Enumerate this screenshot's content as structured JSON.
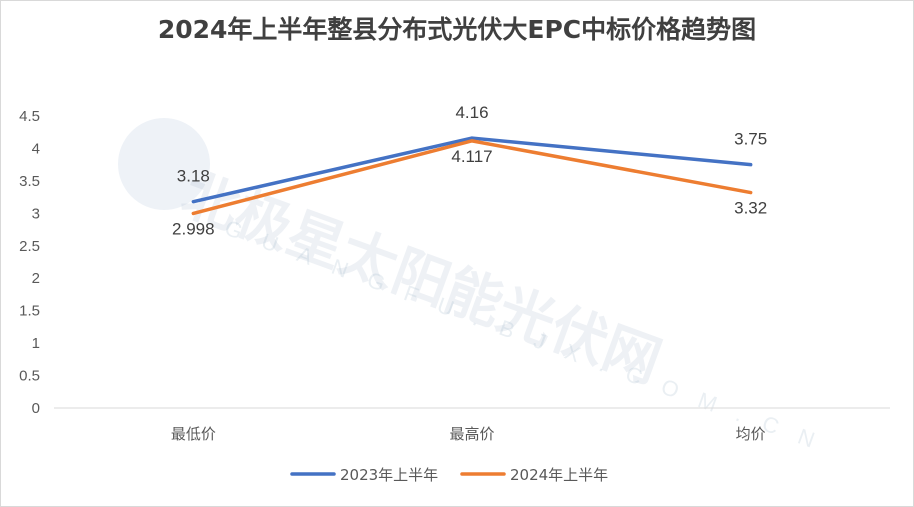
{
  "chart_data": {
    "type": "line",
    "title": "2024年上半年整县分布式光伏大EPC中标价格趋势图",
    "categories": [
      "最低价",
      "最高价",
      "均价"
    ],
    "series": [
      {
        "name": "2023年上半年",
        "values": [
          3.18,
          4.16,
          3.75
        ],
        "labels": [
          "3.18",
          "4.16",
          "3.75"
        ],
        "color": "#4472c4"
      },
      {
        "name": "2024年上半年",
        "values": [
          2.998,
          4.117,
          3.32
        ],
        "labels": [
          "2.998",
          "4.117",
          "3.32"
        ],
        "color": "#ed7d31"
      }
    ],
    "yticks": [
      "0",
      "0.5",
      "1",
      "1.5",
      "2",
      "2.5",
      "3",
      "3.5",
      "4",
      "4.5"
    ],
    "ylim": [
      0,
      4.5
    ],
    "grid": false,
    "legend": "bottom",
    "xlabel": "",
    "ylabel": ""
  },
  "watermark": {
    "text": "北极星太阳能光伏网",
    "subtext": "GUANGFU.BJX.COM.CN"
  }
}
